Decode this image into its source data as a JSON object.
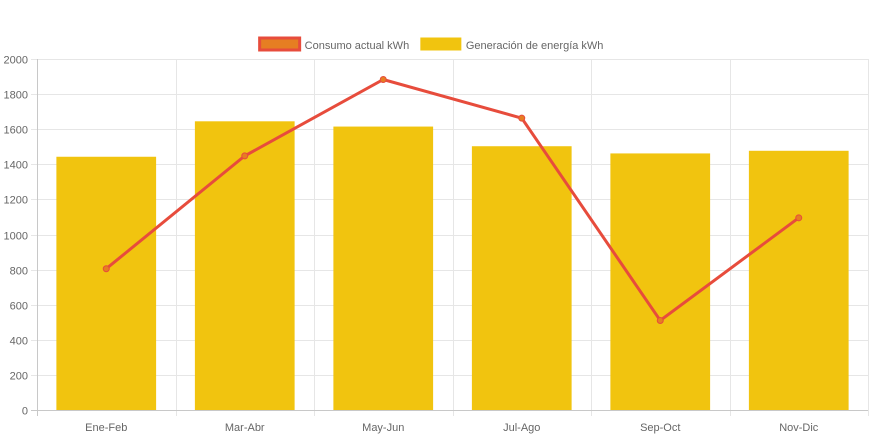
{
  "chart_data": {
    "type": "bar",
    "categories": [
      "Ene-Feb",
      "Mar-Abr",
      "May-Jun",
      "Jul-Ago",
      "Sep-Oct",
      "Nov-Dic"
    ],
    "series": [
      {
        "name": "Consumo actual kWh",
        "type": "line",
        "values": [
          805,
          1448,
          1883,
          1663,
          510,
          1095
        ],
        "color": "#e74c3c",
        "point_fill": "#e67e22"
      },
      {
        "name": "Generación de energía kWh",
        "type": "bar",
        "values": [
          1443,
          1645,
          1615,
          1503,
          1462,
          1477
        ],
        "color": "#f1c40f"
      }
    ],
    "yticks": [
      0,
      200,
      400,
      600,
      800,
      1000,
      1200,
      1400,
      1600,
      1800,
      2000
    ],
    "ylim": [
      0,
      2000
    ],
    "grid": true,
    "legend_position": "top"
  },
  "colors": {
    "grid": "#e6e6e6",
    "tick_text": "#666666"
  }
}
